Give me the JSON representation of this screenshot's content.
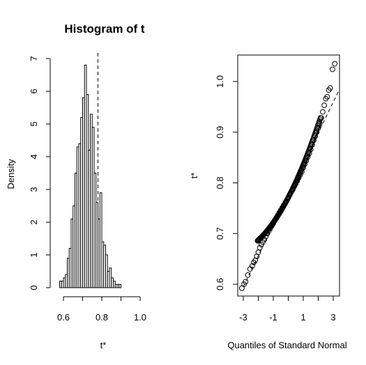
{
  "chart_data": [
    {
      "type": "histogram",
      "title": "Histogram of t",
      "xlabel": "t*",
      "ylabel": "Density",
      "xlim": [
        0.55,
        1.05
      ],
      "ylim": [
        0,
        7
      ],
      "bin_width": 0.01,
      "bin_start": 0.58,
      "density": [
        0.2,
        0.2,
        0.3,
        0.4,
        0.9,
        1.2,
        2.1,
        2.5,
        3.5,
        4.3,
        4.4,
        5.2,
        5.8,
        6.8,
        5.9,
        4.2,
        5.3,
        4.9,
        3.5,
        2.6,
        2.1,
        2.9,
        1.4,
        1.3,
        1.0,
        0.5,
        0.6,
        0.3,
        0.2,
        0.1,
        0.1,
        0.1
      ],
      "vline": 0.78,
      "xticks": [
        "0.6",
        "0.8",
        "1.0"
      ],
      "yticks": [
        "0",
        "1",
        "2",
        "3",
        "4",
        "5",
        "6",
        "7"
      ],
      "grid": false
    },
    {
      "type": "scatter",
      "title": "",
      "xlabel": "Quantiles of Standard Normal",
      "ylabel": "t*",
      "xlim": [
        -3.2,
        3.2
      ],
      "ylim": [
        0.575,
        1.05
      ],
      "xticks": [
        "-3",
        "-1",
        "1",
        "3"
      ],
      "yticks": [
        "0.6",
        "0.7",
        "0.8",
        "0.9",
        "1.0"
      ],
      "reference_line": {
        "intercept": 0.775,
        "slope": 0.06
      },
      "points": [
        [
          -3.1,
          0.592
        ],
        [
          -2.95,
          0.6
        ],
        [
          -2.85,
          0.605
        ],
        [
          -2.7,
          0.618
        ],
        [
          -2.55,
          0.63
        ],
        [
          -2.4,
          0.636
        ],
        [
          -2.3,
          0.643
        ],
        [
          -2.2,
          0.647
        ],
        [
          -2.1,
          0.655
        ],
        [
          -2.0,
          0.663
        ],
        [
          -1.9,
          0.672
        ],
        [
          -1.8,
          0.678
        ],
        [
          -1.7,
          0.683
        ],
        [
          -1.6,
          0.688
        ],
        [
          -1.5,
          0.694
        ],
        [
          -1.4,
          0.7
        ],
        [
          -1.3,
          0.705
        ],
        [
          -1.2,
          0.71
        ],
        [
          -1.1,
          0.715
        ],
        [
          -1.0,
          0.72
        ],
        [
          -0.9,
          0.726
        ],
        [
          -0.8,
          0.731
        ],
        [
          -0.7,
          0.736
        ],
        [
          -0.6,
          0.741
        ],
        [
          -0.5,
          0.746
        ],
        [
          -0.4,
          0.751
        ],
        [
          -0.3,
          0.756
        ],
        [
          -0.2,
          0.761
        ],
        [
          -0.1,
          0.766
        ],
        [
          0.0,
          0.771
        ],
        [
          0.1,
          0.777
        ],
        [
          0.2,
          0.782
        ],
        [
          0.3,
          0.787
        ],
        [
          0.4,
          0.793
        ],
        [
          0.5,
          0.798
        ],
        [
          0.6,
          0.804
        ],
        [
          0.7,
          0.81
        ],
        [
          0.8,
          0.816
        ],
        [
          0.9,
          0.822
        ],
        [
          1.0,
          0.83
        ],
        [
          1.1,
          0.837
        ],
        [
          1.2,
          0.844
        ],
        [
          1.3,
          0.851
        ],
        [
          1.4,
          0.858
        ],
        [
          1.5,
          0.866
        ],
        [
          1.6,
          0.875
        ],
        [
          1.7,
          0.884
        ],
        [
          1.8,
          0.892
        ],
        [
          1.9,
          0.9
        ],
        [
          2.0,
          0.908
        ],
        [
          2.1,
          0.917
        ],
        [
          2.2,
          0.928
        ],
        [
          2.3,
          0.94
        ],
        [
          2.4,
          0.953
        ],
        [
          2.5,
          0.966
        ],
        [
          2.6,
          0.97
        ],
        [
          2.7,
          0.983
        ],
        [
          2.8,
          0.987
        ],
        [
          2.95,
          1.024
        ],
        [
          3.1,
          1.035
        ]
      ],
      "grid": false
    }
  ]
}
